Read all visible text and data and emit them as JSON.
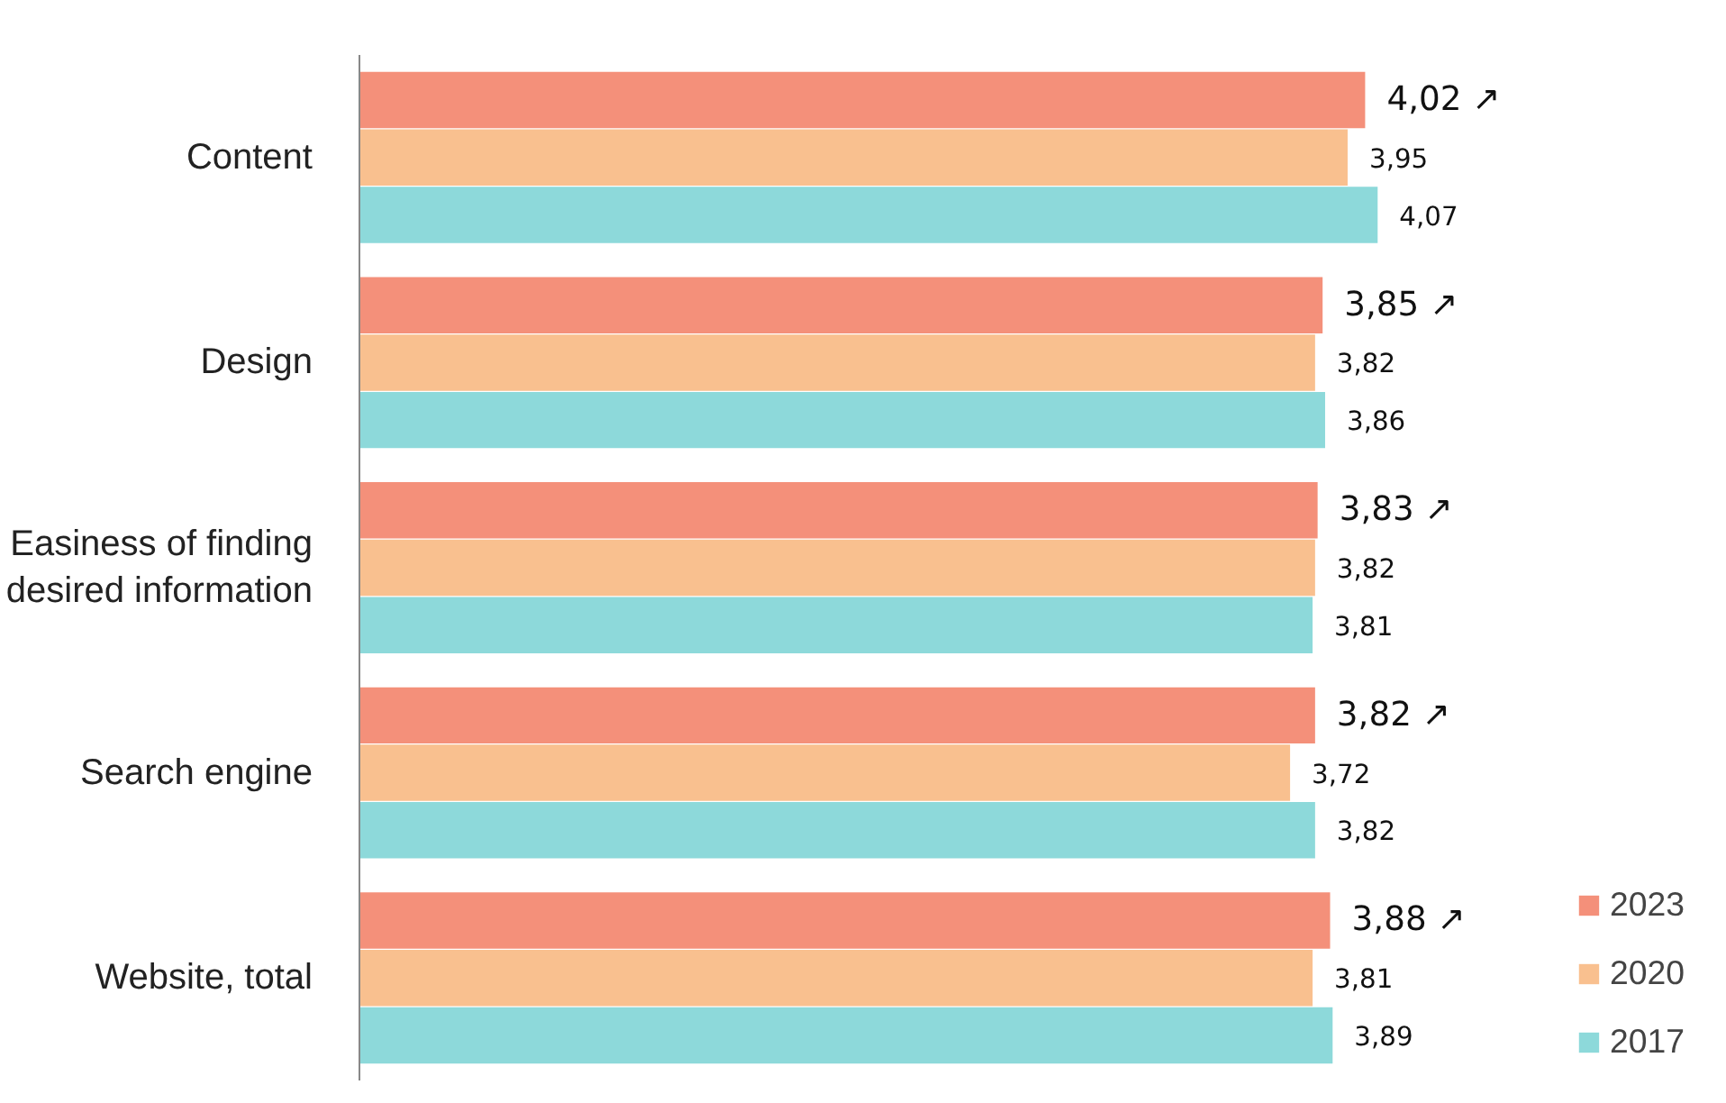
{
  "chart_data": {
    "type": "bar",
    "orientation": "horizontal",
    "categories": [
      "Content",
      "Design",
      "Easiness of finding\ndesired information",
      "Search engine",
      "Website, total"
    ],
    "series": [
      {
        "name": "2023",
        "color": "#f4907a",
        "values": [
          4.02,
          3.85,
          3.83,
          3.82,
          3.88
        ],
        "value_labels": [
          "4,02 ↗",
          "3,85 ↗",
          "3,83 ↗",
          "3,82 ↗",
          "3,88 ↗"
        ]
      },
      {
        "name": "2020",
        "color": "#f9c08f",
        "values": [
          3.95,
          3.82,
          3.82,
          3.72,
          3.81
        ],
        "value_labels": [
          "3,95",
          "3,82",
          "3,82",
          "3,72",
          "3,81"
        ]
      },
      {
        "name": "2017",
        "color": "#8dd9da",
        "values": [
          4.07,
          3.86,
          3.81,
          3.82,
          3.89
        ],
        "value_labels": [
          "4,07",
          "3,86",
          "3,81",
          "3,82",
          "3,89"
        ]
      }
    ],
    "legend": "bottom right",
    "grid": false
  }
}
